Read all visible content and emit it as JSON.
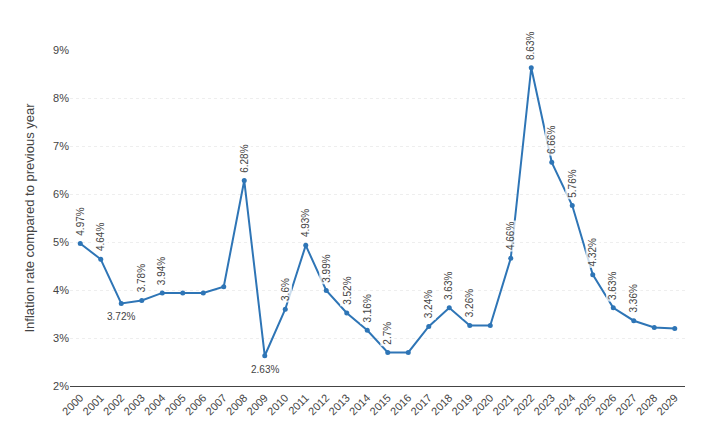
{
  "chart_data": {
    "type": "line",
    "x": [
      2000,
      2001,
      2002,
      2003,
      2004,
      2005,
      2006,
      2007,
      2008,
      2009,
      2010,
      2011,
      2012,
      2013,
      2014,
      2015,
      2016,
      2017,
      2018,
      2019,
      2020,
      2021,
      2022,
      2023,
      2024,
      2025,
      2026,
      2027,
      2028,
      2029
    ],
    "values": [
      4.97,
      4.64,
      3.72,
      3.78,
      3.94,
      3.94,
      3.94,
      4.07,
      6.28,
      2.63,
      3.6,
      4.93,
      3.99,
      3.52,
      3.16,
      2.7,
      2.7,
      3.24,
      3.63,
      3.26,
      3.26,
      4.66,
      8.63,
      6.66,
      5.76,
      4.32,
      3.63,
      3.36,
      3.22,
      3.2
    ],
    "color": "#2e75b6",
    "marker": "circle",
    "ylabel": "Inflation rate compared to previous year",
    "xlim": [
      1999.5,
      2029.5
    ],
    "xticks": [
      2000,
      2001,
      2002,
      2003,
      2004,
      2005,
      2006,
      2007,
      2008,
      2009,
      2010,
      2011,
      2012,
      2013,
      2014,
      2015,
      2016,
      2017,
      2018,
      2019,
      2020,
      2021,
      2022,
      2023,
      2024,
      2025,
      2026,
      2027,
      2028,
      2029
    ],
    "ylim": [
      2,
      9
    ],
    "yticks": [
      {
        "value": 2,
        "label": "2%"
      },
      {
        "value": 3,
        "label": "3%"
      },
      {
        "value": 4,
        "label": "4%"
      },
      {
        "value": 5,
        "label": "5%"
      },
      {
        "value": 6,
        "label": "6%"
      },
      {
        "value": 7,
        "label": "7%"
      },
      {
        "value": 8,
        "label": "8%"
      },
      {
        "value": 9,
        "label": "9%"
      }
    ],
    "grid": true,
    "annotations": [
      {
        "x": 2000,
        "y": 4.97,
        "text": "4.97%"
      },
      {
        "x": 2001,
        "y": 4.64,
        "text": "4.64%"
      },
      {
        "x": 2002,
        "y": 3.72,
        "text": "3.72%"
      },
      {
        "x": 2003,
        "y": 3.78,
        "text": "3.78%"
      },
      {
        "x": 2004,
        "y": 3.94,
        "text": "3.94%"
      },
      {
        "x": 2008,
        "y": 6.28,
        "text": "6.28%"
      },
      {
        "x": 2009,
        "y": 2.63,
        "text": "2.63%"
      },
      {
        "x": 2010,
        "y": 3.6,
        "text": "3.6%"
      },
      {
        "x": 2011,
        "y": 4.93,
        "text": "4.93%"
      },
      {
        "x": 2012,
        "y": 3.99,
        "text": "3.99%"
      },
      {
        "x": 2013,
        "y": 3.52,
        "text": "3.52%"
      },
      {
        "x": 2014,
        "y": 3.16,
        "text": "3.16%"
      },
      {
        "x": 2015,
        "y": 2.7,
        "text": "2.7%"
      },
      {
        "x": 2017,
        "y": 3.24,
        "text": "3.24%"
      },
      {
        "x": 2018,
        "y": 3.63,
        "text": "3.63%"
      },
      {
        "x": 2019,
        "y": 3.26,
        "text": "3.26%"
      },
      {
        "x": 2021,
        "y": 4.66,
        "text": "4.66%"
      },
      {
        "x": 2022,
        "y": 8.63,
        "text": "8.63%"
      },
      {
        "x": 2023,
        "y": 6.66,
        "text": "6.66%"
      },
      {
        "x": 2024,
        "y": 5.76,
        "text": "5.76%"
      },
      {
        "x": 2025,
        "y": 4.32,
        "text": "4.32%"
      },
      {
        "x": 2026,
        "y": 3.63,
        "text": "3.63%"
      },
      {
        "x": 2027,
        "y": 3.36,
        "text": "3.36%"
      }
    ]
  }
}
